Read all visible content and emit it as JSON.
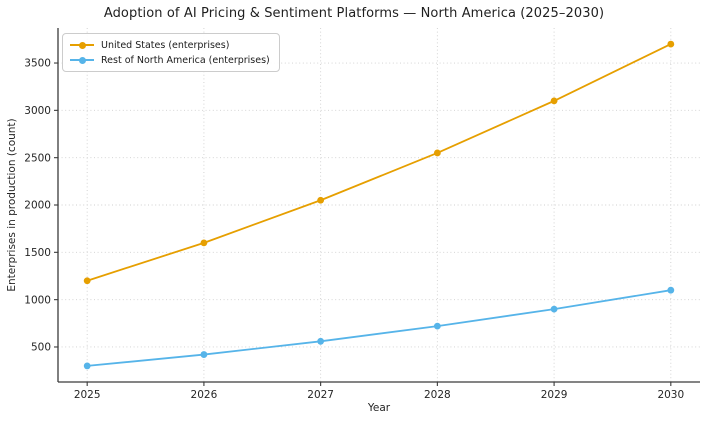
{
  "title": "Adoption of AI Pricing & Sentiment Platforms — North America (2025–2030)",
  "chart_data": {
    "type": "line",
    "title": "Adoption of AI Pricing & Sentiment Platforms — North America (2025–2030)",
    "xlabel": "Year",
    "ylabel": "Enterprises in production (count)",
    "x": [
      2025,
      2026,
      2027,
      2028,
      2029,
      2030
    ],
    "series": [
      {
        "name": "United States (enterprises)",
        "color": "#E69F00",
        "values": [
          1200,
          1600,
          2050,
          2550,
          3100,
          3700
        ]
      },
      {
        "name": "Rest of North America (enterprises)",
        "color": "#56B4E9",
        "values": [
          300,
          420,
          560,
          720,
          900,
          1100
        ]
      }
    ],
    "xticks": [
      2025,
      2026,
      2027,
      2028,
      2029,
      2030
    ],
    "yticks": [
      500,
      1000,
      1500,
      2000,
      2500,
      3000,
      3500
    ],
    "xlim": [
      2024.75,
      2030.25
    ],
    "ylim": [
      130,
      3870
    ],
    "grid": true,
    "marker": "circle",
    "legend_position": "upper left"
  },
  "style_colors": {
    "grid": "#cfcfcf",
    "spine": "#3b3b3b",
    "tick_label": "#262626",
    "title_text": "#1f1f1f",
    "background": "#ffffff"
  }
}
